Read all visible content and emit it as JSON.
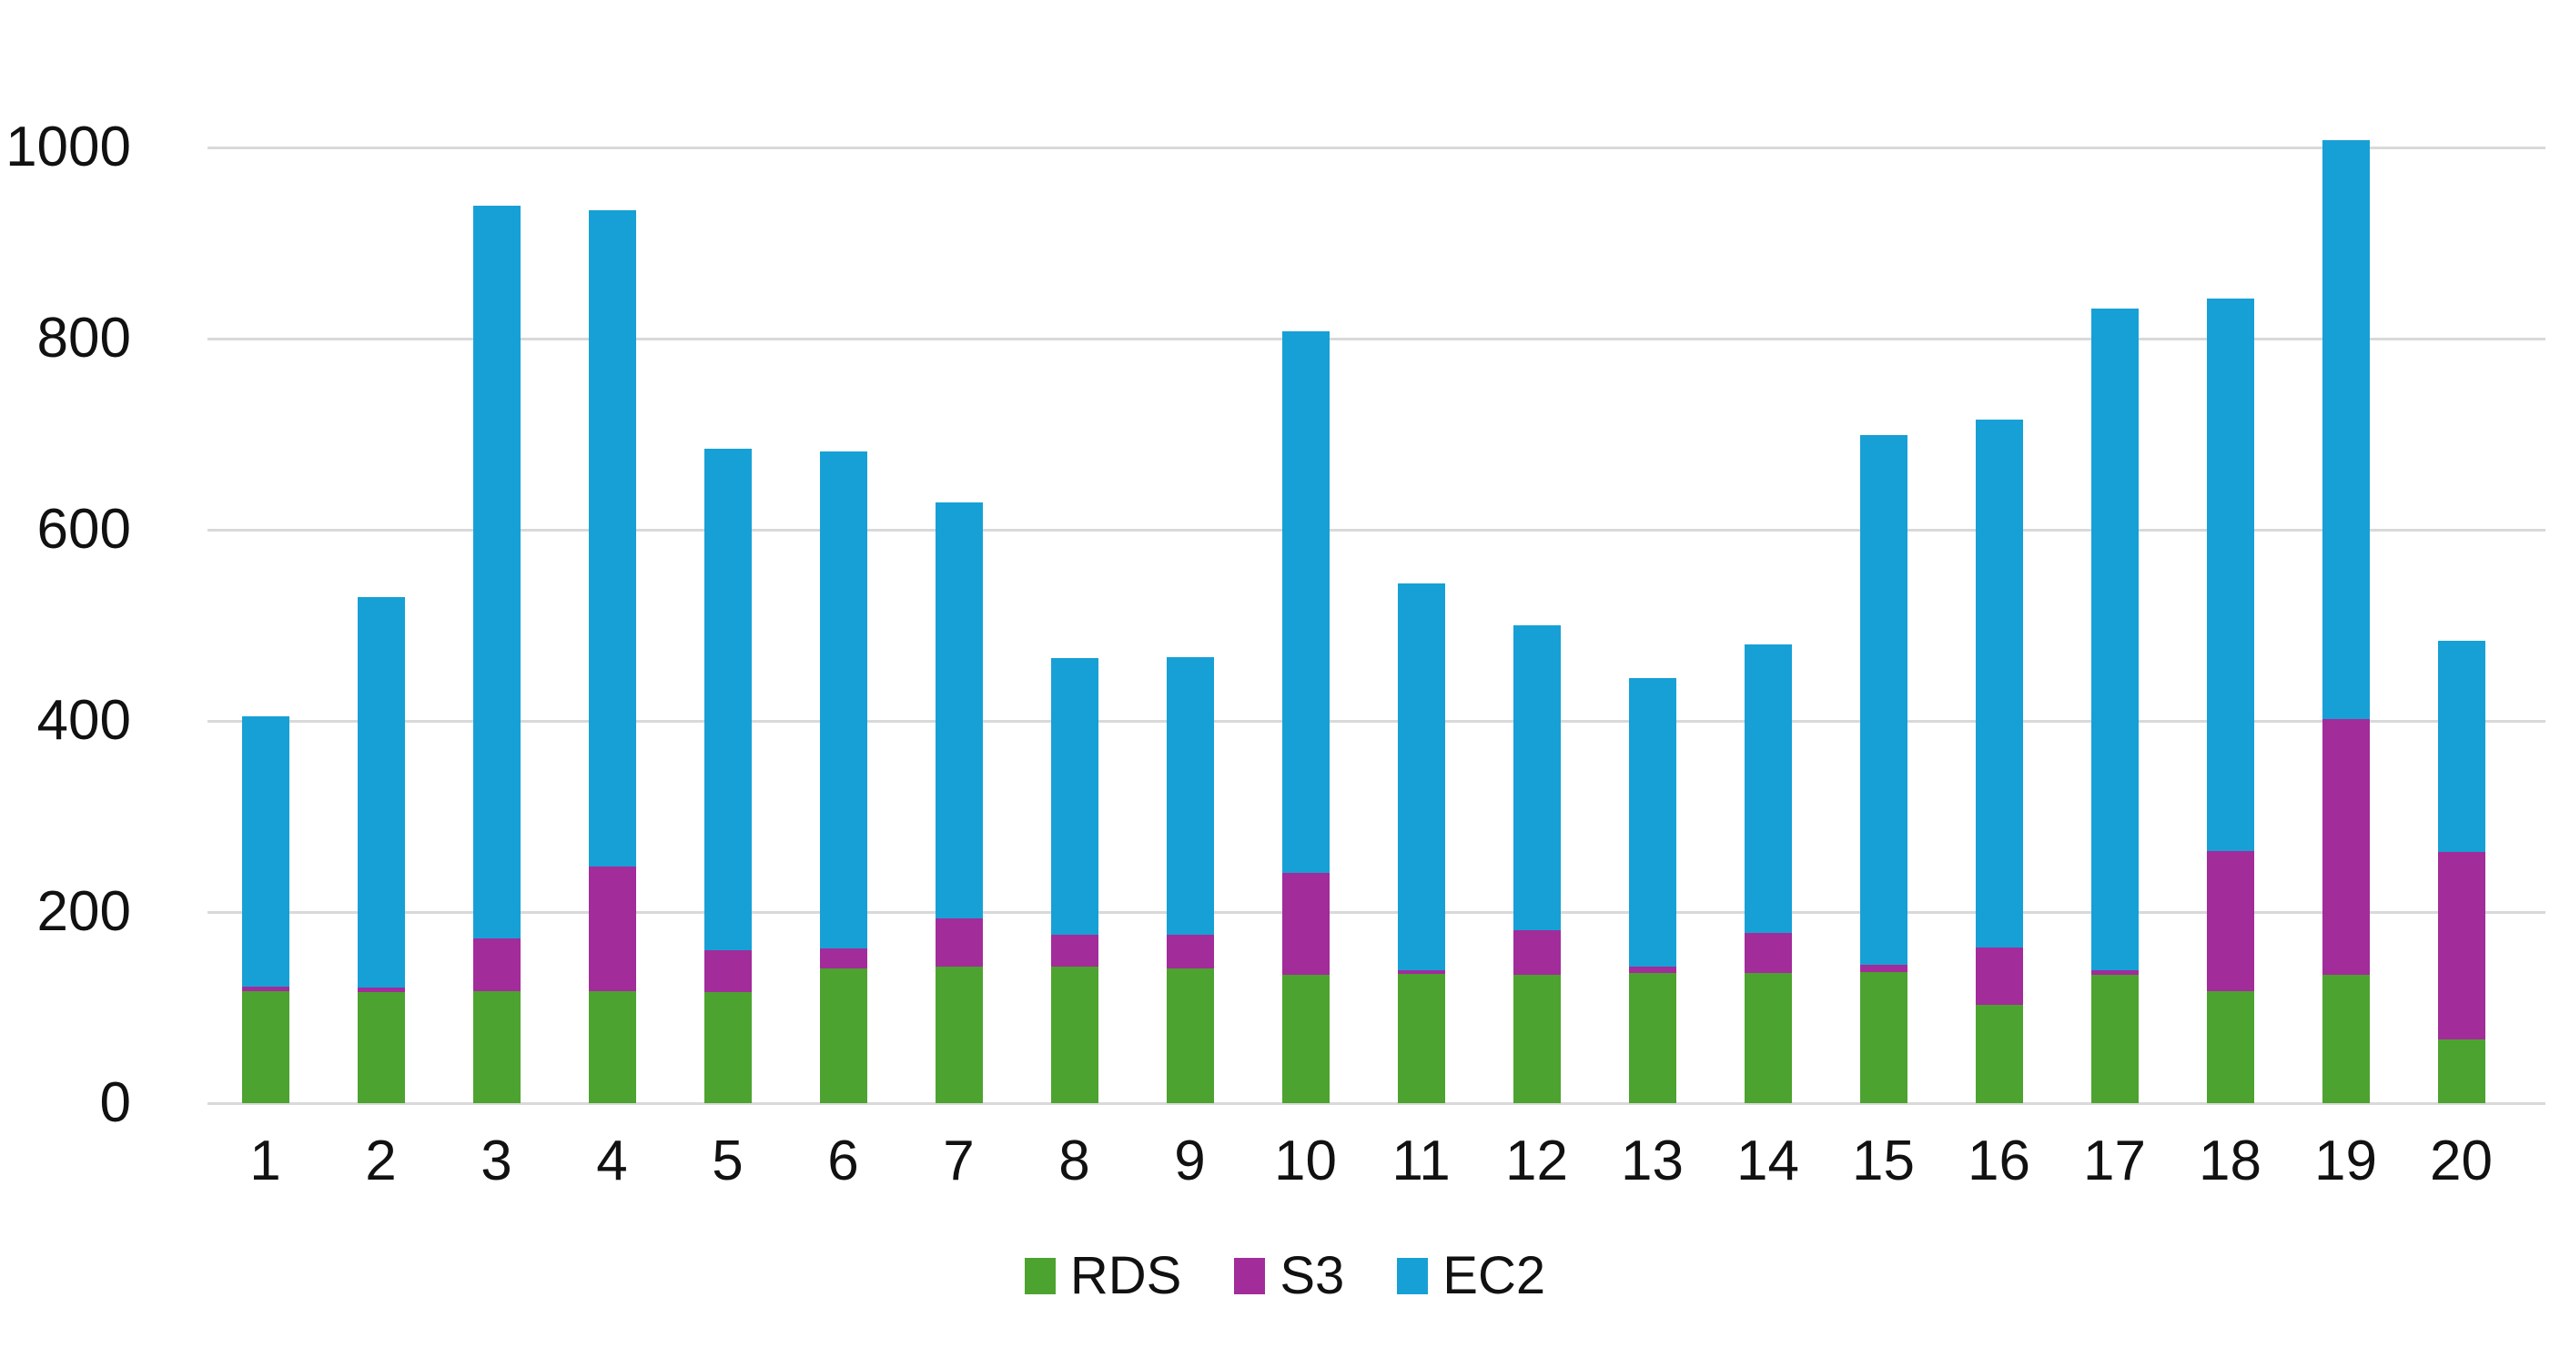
{
  "chart_data": {
    "type": "bar",
    "stacked": true,
    "title": "",
    "xlabel": "",
    "ylabel": "",
    "categories": [
      "1",
      "2",
      "3",
      "4",
      "5",
      "6",
      "7",
      "8",
      "9",
      "10",
      "11",
      "12",
      "13",
      "14",
      "15",
      "16",
      "17",
      "18",
      "19",
      "20"
    ],
    "series": [
      {
        "name": "RDS",
        "color": "#4da32f",
        "values": [
          117,
          116,
          117,
          117,
          116,
          141,
          143,
          143,
          141,
          134,
          135,
          134,
          136,
          136,
          137,
          103,
          134,
          117,
          134,
          67
        ]
      },
      {
        "name": "S3",
        "color": "#a22c9a",
        "values": [
          5,
          5,
          55,
          131,
          44,
          21,
          50,
          33,
          35,
          107,
          4,
          47,
          7,
          42,
          8,
          60,
          5,
          147,
          268,
          196
        ]
      },
      {
        "name": "EC2",
        "color": "#17a0d6",
        "values": [
          283,
          409,
          767,
          686,
          525,
          520,
          436,
          290,
          291,
          567,
          405,
          319,
          302,
          302,
          554,
          552,
          692,
          578,
          606,
          221
        ]
      }
    ],
    "totals": [
      405,
      530,
      939,
      934,
      685,
      682,
      629,
      466,
      467,
      808,
      544,
      500,
      445,
      480,
      699,
      715,
      831,
      842,
      1008,
      484
    ],
    "y_ticks": [
      0,
      200,
      400,
      600,
      800,
      1000
    ],
    "ylim": [
      0,
      1000
    ],
    "grid": true,
    "gridline_color": "#d9d9d9",
    "background_color": "#ffffff",
    "text_color": "#111111",
    "legend_position": "bottom",
    "legend_entries": [
      "RDS",
      "S3",
      "EC2"
    ]
  }
}
